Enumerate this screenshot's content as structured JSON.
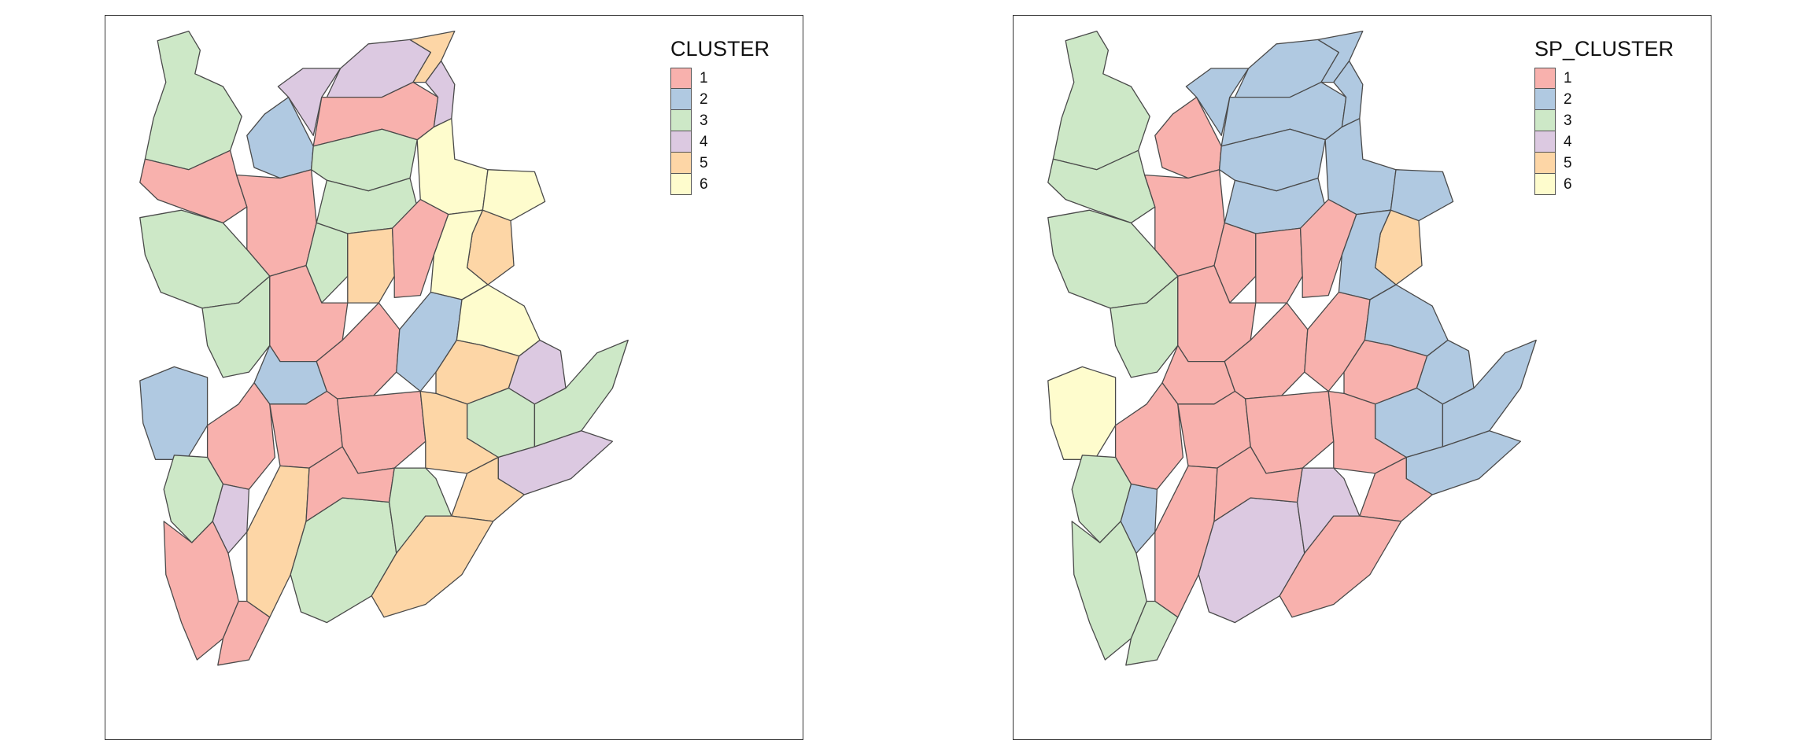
{
  "palette": {
    "1": "#f8b1ad",
    "2": "#b0c9e1",
    "3": "#cde8c7",
    "4": "#dcc9e1",
    "5": "#fdd6a6",
    "6": "#fefccd"
  },
  "maps": [
    {
      "legend": {
        "title": "CLUSTER",
        "items": [
          {
            "label": "1",
            "key": "1"
          },
          {
            "label": "2",
            "key": "2"
          },
          {
            "label": "3",
            "key": "3"
          },
          {
            "label": "4",
            "key": "4"
          },
          {
            "label": "5",
            "key": "5"
          },
          {
            "label": "6",
            "key": "6"
          }
        ]
      },
      "regions": [
        {
          "id": "north-west",
          "cluster": "3"
        },
        {
          "id": "west-strip",
          "cluster": "1"
        },
        {
          "id": "north-lobe-a",
          "cluster": "2"
        },
        {
          "id": "north-lobe-b",
          "cluster": "4"
        },
        {
          "id": "north-lobe-c",
          "cluster": "4"
        },
        {
          "id": "north-lobe-d",
          "cluster": "5"
        },
        {
          "id": "north-lobe-e",
          "cluster": "1"
        },
        {
          "id": "north-lobe-f",
          "cluster": "4"
        },
        {
          "id": "north-center-a",
          "cluster": "3"
        },
        {
          "id": "north-center-b",
          "cluster": "3"
        },
        {
          "id": "north-east-a",
          "cluster": "6"
        },
        {
          "id": "north-east-b",
          "cluster": "6"
        },
        {
          "id": "north-east-c",
          "cluster": "5"
        },
        {
          "id": "upper-mid-a",
          "cluster": "1"
        },
        {
          "id": "upper-mid-b",
          "cluster": "3"
        },
        {
          "id": "upper-mid-c",
          "cluster": "5"
        },
        {
          "id": "upper-mid-d",
          "cluster": "1"
        },
        {
          "id": "upper-mid-e",
          "cluster": "6"
        },
        {
          "id": "west-mid",
          "cluster": "3"
        },
        {
          "id": "west-mid-b",
          "cluster": "3"
        },
        {
          "id": "center-a",
          "cluster": "1"
        },
        {
          "id": "center-b",
          "cluster": "2"
        },
        {
          "id": "center-c",
          "cluster": "1"
        },
        {
          "id": "center-d",
          "cluster": "2"
        },
        {
          "id": "center-e",
          "cluster": "6"
        },
        {
          "id": "center-f",
          "cluster": "5"
        },
        {
          "id": "west-lower",
          "cluster": "2"
        },
        {
          "id": "east-a",
          "cluster": "4"
        },
        {
          "id": "east-b",
          "cluster": "3"
        },
        {
          "id": "east-c",
          "cluster": "3"
        },
        {
          "id": "east-d",
          "cluster": "4"
        },
        {
          "id": "lower-a",
          "cluster": "1"
        },
        {
          "id": "lower-b",
          "cluster": "1"
        },
        {
          "id": "lower-c",
          "cluster": "1"
        },
        {
          "id": "lower-d",
          "cluster": "5"
        },
        {
          "id": "lower-e",
          "cluster": "5"
        },
        {
          "id": "lower-f",
          "cluster": "4"
        },
        {
          "id": "lower-g",
          "cluster": "3"
        },
        {
          "id": "south-a",
          "cluster": "1"
        },
        {
          "id": "south-b",
          "cluster": "5"
        },
        {
          "id": "south-c",
          "cluster": "3"
        },
        {
          "id": "south-d",
          "cluster": "1"
        },
        {
          "id": "south-e",
          "cluster": "3"
        },
        {
          "id": "south-f",
          "cluster": "1"
        },
        {
          "id": "south-g",
          "cluster": "5"
        }
      ]
    },
    {
      "legend": {
        "title": "SP_CLUSTER",
        "items": [
          {
            "label": "1",
            "key": "1"
          },
          {
            "label": "2",
            "key": "2"
          },
          {
            "label": "3",
            "key": "3"
          },
          {
            "label": "4",
            "key": "4"
          },
          {
            "label": "5",
            "key": "5"
          },
          {
            "label": "6",
            "key": "6"
          }
        ]
      },
      "regions": [
        {
          "id": "north-west",
          "cluster": "3"
        },
        {
          "id": "west-strip",
          "cluster": "3"
        },
        {
          "id": "north-lobe-a",
          "cluster": "1"
        },
        {
          "id": "north-lobe-b",
          "cluster": "2"
        },
        {
          "id": "north-lobe-c",
          "cluster": "2"
        },
        {
          "id": "north-lobe-d",
          "cluster": "2"
        },
        {
          "id": "north-lobe-e",
          "cluster": "2"
        },
        {
          "id": "north-lobe-f",
          "cluster": "2"
        },
        {
          "id": "north-center-a",
          "cluster": "2"
        },
        {
          "id": "north-center-b",
          "cluster": "2"
        },
        {
          "id": "north-east-a",
          "cluster": "2"
        },
        {
          "id": "north-east-b",
          "cluster": "2"
        },
        {
          "id": "north-east-c",
          "cluster": "5"
        },
        {
          "id": "upper-mid-a",
          "cluster": "1"
        },
        {
          "id": "upper-mid-b",
          "cluster": "1"
        },
        {
          "id": "upper-mid-c",
          "cluster": "1"
        },
        {
          "id": "upper-mid-d",
          "cluster": "1"
        },
        {
          "id": "upper-mid-e",
          "cluster": "2"
        },
        {
          "id": "west-mid",
          "cluster": "3"
        },
        {
          "id": "west-mid-b",
          "cluster": "3"
        },
        {
          "id": "center-a",
          "cluster": "1"
        },
        {
          "id": "center-b",
          "cluster": "1"
        },
        {
          "id": "center-c",
          "cluster": "1"
        },
        {
          "id": "center-d",
          "cluster": "1"
        },
        {
          "id": "center-e",
          "cluster": "2"
        },
        {
          "id": "center-f",
          "cluster": "1"
        },
        {
          "id": "west-lower",
          "cluster": "6"
        },
        {
          "id": "east-a",
          "cluster": "2"
        },
        {
          "id": "east-b",
          "cluster": "2"
        },
        {
          "id": "east-c",
          "cluster": "2"
        },
        {
          "id": "east-d",
          "cluster": "2"
        },
        {
          "id": "lower-a",
          "cluster": "1"
        },
        {
          "id": "lower-b",
          "cluster": "1"
        },
        {
          "id": "lower-c",
          "cluster": "1"
        },
        {
          "id": "lower-d",
          "cluster": "1"
        },
        {
          "id": "lower-e",
          "cluster": "1"
        },
        {
          "id": "lower-f",
          "cluster": "2"
        },
        {
          "id": "lower-g",
          "cluster": "3"
        },
        {
          "id": "south-a",
          "cluster": "3"
        },
        {
          "id": "south-b",
          "cluster": "1"
        },
        {
          "id": "south-c",
          "cluster": "4"
        },
        {
          "id": "south-d",
          "cluster": "1"
        },
        {
          "id": "south-e",
          "cluster": "4"
        },
        {
          "id": "south-f",
          "cluster": "3"
        },
        {
          "id": "south-g",
          "cluster": "1"
        }
      ]
    }
  ]
}
